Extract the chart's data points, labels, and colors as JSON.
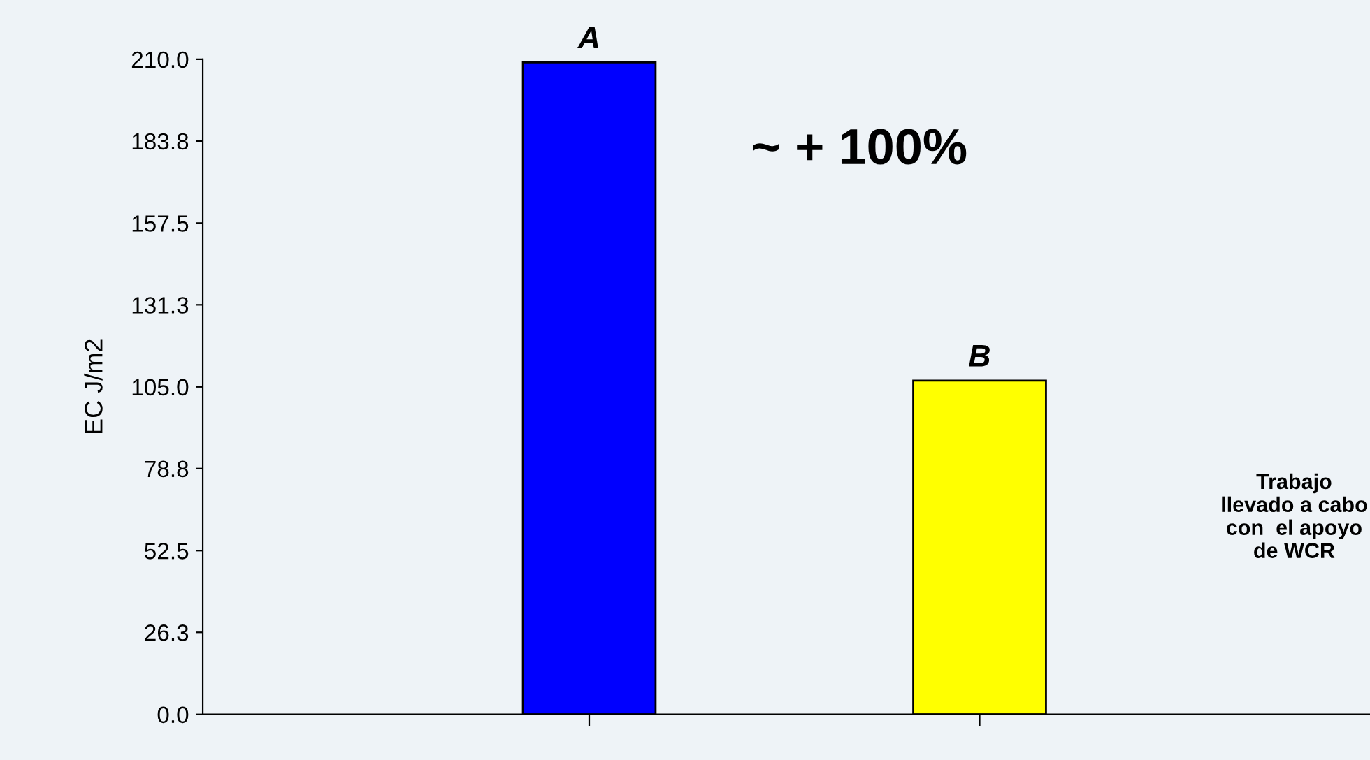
{
  "chart_data": {
    "type": "bar",
    "ylabel": "EC J/m2",
    "categories": [
      null,
      null
    ],
    "values": [
      209,
      107
    ],
    "colors": [
      "#0000ff",
      "#ffff00"
    ],
    "value_labels": [
      "A",
      "B"
    ],
    "ylim": [
      0,
      210
    ],
    "yticks": [
      {
        "value": 0,
        "label": "0.0"
      },
      {
        "value": 26.3,
        "label": "26.3"
      },
      {
        "value": 52.5,
        "label": "52.5"
      },
      {
        "value": 78.8,
        "label": "78.8"
      },
      {
        "value": 105,
        "label": "105.0"
      },
      {
        "value": 131.3,
        "label": "131.3"
      },
      {
        "value": 157.5,
        "label": "157.5"
      },
      {
        "value": 183.8,
        "label": "183.8"
      },
      {
        "value": 210,
        "label": "210.0"
      }
    ],
    "grid": false,
    "annotations": [
      "~ + 100%",
      "Trabajo\nllevado a cabo\ncon  el apoyo\nde WCR"
    ]
  }
}
